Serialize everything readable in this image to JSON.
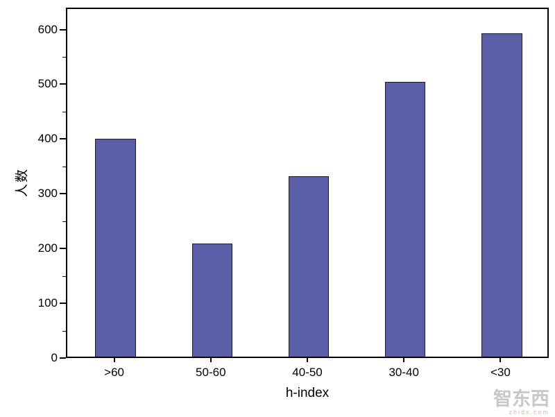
{
  "chart_data": {
    "type": "bar",
    "categories": [
      ">60",
      "50-60",
      "40-50",
      "30-40",
      "<30"
    ],
    "values": [
      398,
      207,
      330,
      502,
      590
    ],
    "title": "",
    "xlabel": "h-index",
    "ylabel": "人数",
    "ylim": [
      0,
      640
    ],
    "yticks": [
      0,
      100,
      200,
      300,
      400,
      500,
      600
    ],
    "minor_tick_step": 50,
    "grid": false,
    "legend": "none",
    "bar_color": "#5a5ea6",
    "bar_edge_color": "#1c1c30",
    "axis_color": "#000000"
  },
  "watermark": {
    "text": "智东西",
    "subtext": "zhidx.com"
  }
}
